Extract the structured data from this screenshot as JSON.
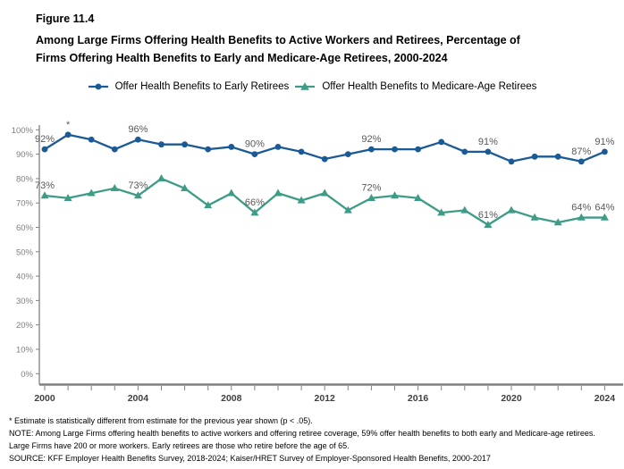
{
  "header": {
    "figure_label": "Figure 11.4",
    "title_line1": "Among Large Firms Offering Health Benefits to Active Workers and Retirees, Percentage of",
    "title_line2": "Firms Offering Health Benefits to Early and Medicare-Age Retirees, 2000-2024"
  },
  "chart_data": {
    "type": "line",
    "title": "Among Large Firms Offering Health Benefits to Active Workers and Retirees, Percentage of Firms Offering Health Benefits to Early and Medicare-Age Retirees, 2000-2024",
    "xlabel": "",
    "ylabel": "",
    "x": [
      2000,
      2001,
      2002,
      2003,
      2004,
      2005,
      2006,
      2007,
      2008,
      2009,
      2010,
      2011,
      2012,
      2013,
      2014,
      2015,
      2016,
      2017,
      2018,
      2019,
      2020,
      2021,
      2022,
      2023,
      2024
    ],
    "x_labeled_ticks": [
      2000,
      2004,
      2008,
      2012,
      2016,
      2020,
      2024
    ],
    "ylim": [
      0,
      100
    ],
    "y_tick_step": 10,
    "y_tick_suffix": "%",
    "grid": false,
    "legend_position": "top",
    "axis_color": "#808080",
    "y_tick_label_color": "#7f7f7f",
    "x_tick_label_color": "#404040",
    "point_label_color": "#595959",
    "series": [
      {
        "name": "Offer Health Benefits to Early Retirees",
        "color": "#1A5A96",
        "marker": "circle",
        "values": [
          92,
          98,
          96,
          92,
          96,
          94,
          94,
          92,
          93,
          90,
          93,
          91,
          88,
          90,
          92,
          92,
          92,
          95,
          91,
          91,
          87,
          89,
          89,
          87,
          91
        ],
        "point_labels": {
          "2000": "92%",
          "2001": "*",
          "2004": "96%",
          "2009": "90%",
          "2014": "92%",
          "2019": "91%",
          "2023": "87%",
          "2024": "91%"
        }
      },
      {
        "name": "Offer Health Benefits to Medicare-Age Retirees",
        "color": "#3D9C85",
        "marker": "triangle",
        "values": [
          73,
          72,
          74,
          76,
          73,
          80,
          76,
          69,
          74,
          66,
          74,
          71,
          74,
          67,
          72,
          73,
          72,
          66,
          67,
          61,
          67,
          64,
          62,
          64,
          64
        ],
        "point_labels": {
          "2000": "73%",
          "2004": "73%",
          "2009": "66%",
          "2014": "72%",
          "2019": "61%",
          "2023": "64%",
          "2024": "64%"
        }
      }
    ]
  },
  "footnotes": {
    "asterisk": "* Estimate is statistically different from estimate for the previous year shown (p < .05).",
    "note": "NOTE: Among Large Firms offering health benefits to active workers and offering retiree coverage, 59% offer health benefits to both early and Medicare-age retirees. Large Firms have 200 or more workers. Early retirees are those who retire before the age of 65.",
    "source": "SOURCE: KFF Employer Health Benefits Survey, 2018-2024; Kaiser/HRET Survey of Employer-Sponsored Health Benefits, 2000-2017"
  }
}
